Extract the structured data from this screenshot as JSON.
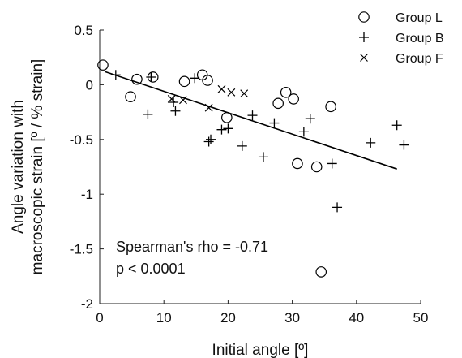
{
  "chart_data": {
    "type": "scatter",
    "title": "",
    "xlabel": "Initial angle [º]",
    "ylabel": [
      "Angle variation with",
      "macroscopic strain [º / % strain]"
    ],
    "xlim": [
      0,
      50
    ],
    "ylim": [
      -2,
      0.5
    ],
    "xticks": [
      "0",
      "10",
      "20",
      "30",
      "40",
      "50"
    ],
    "yticks": [
      "0.5",
      "0",
      "-0.5",
      "-1",
      "-1.5",
      "-2"
    ],
    "grid": false,
    "legend_position": "top-right",
    "series": [
      {
        "name": "Group L",
        "marker": "circle",
        "points": [
          [
            0.5,
            0.18
          ],
          [
            4.8,
            -0.11
          ],
          [
            5.8,
            0.05
          ],
          [
            8.3,
            0.07
          ],
          [
            13.2,
            0.03
          ],
          [
            16.0,
            0.09
          ],
          [
            16.8,
            0.04
          ],
          [
            19.8,
            -0.3
          ],
          [
            27.8,
            -0.17
          ],
          [
            29.0,
            -0.07
          ],
          [
            30.2,
            -0.13
          ],
          [
            30.8,
            -0.72
          ],
          [
            33.8,
            -0.75
          ],
          [
            34.5,
            -1.71
          ],
          [
            36.0,
            -0.2
          ]
        ]
      },
      {
        "name": "Group B",
        "marker": "plus",
        "points": [
          [
            2.5,
            0.09
          ],
          [
            8.0,
            0.07
          ],
          [
            7.5,
            -0.27
          ],
          [
            11.5,
            -0.16
          ],
          [
            11.8,
            -0.24
          ],
          [
            14.8,
            0.06
          ],
          [
            17.0,
            -0.52
          ],
          [
            17.3,
            -0.5
          ],
          [
            19.0,
            -0.41
          ],
          [
            20.0,
            -0.4
          ],
          [
            22.2,
            -0.56
          ],
          [
            23.8,
            -0.28
          ],
          [
            25.5,
            -0.66
          ],
          [
            27.2,
            -0.35
          ],
          [
            31.8,
            -0.43
          ],
          [
            32.8,
            -0.31
          ],
          [
            36.2,
            -0.72
          ],
          [
            37.0,
            -1.12
          ],
          [
            42.2,
            -0.53
          ],
          [
            46.3,
            -0.37
          ],
          [
            47.4,
            -0.55
          ]
        ]
      },
      {
        "name": "Group F",
        "marker": "x",
        "points": [
          [
            11.2,
            -0.13
          ],
          [
            13.0,
            -0.14
          ],
          [
            17.0,
            -0.21
          ],
          [
            19.0,
            -0.04
          ],
          [
            20.5,
            -0.07
          ],
          [
            22.5,
            -0.08
          ]
        ]
      }
    ],
    "fit_line": {
      "x": [
        0.8,
        46.3
      ],
      "y": [
        0.12,
        -0.77
      ]
    },
    "annotations": [
      "Spearman's rho = -0.71",
      "p < 0.0001"
    ]
  }
}
